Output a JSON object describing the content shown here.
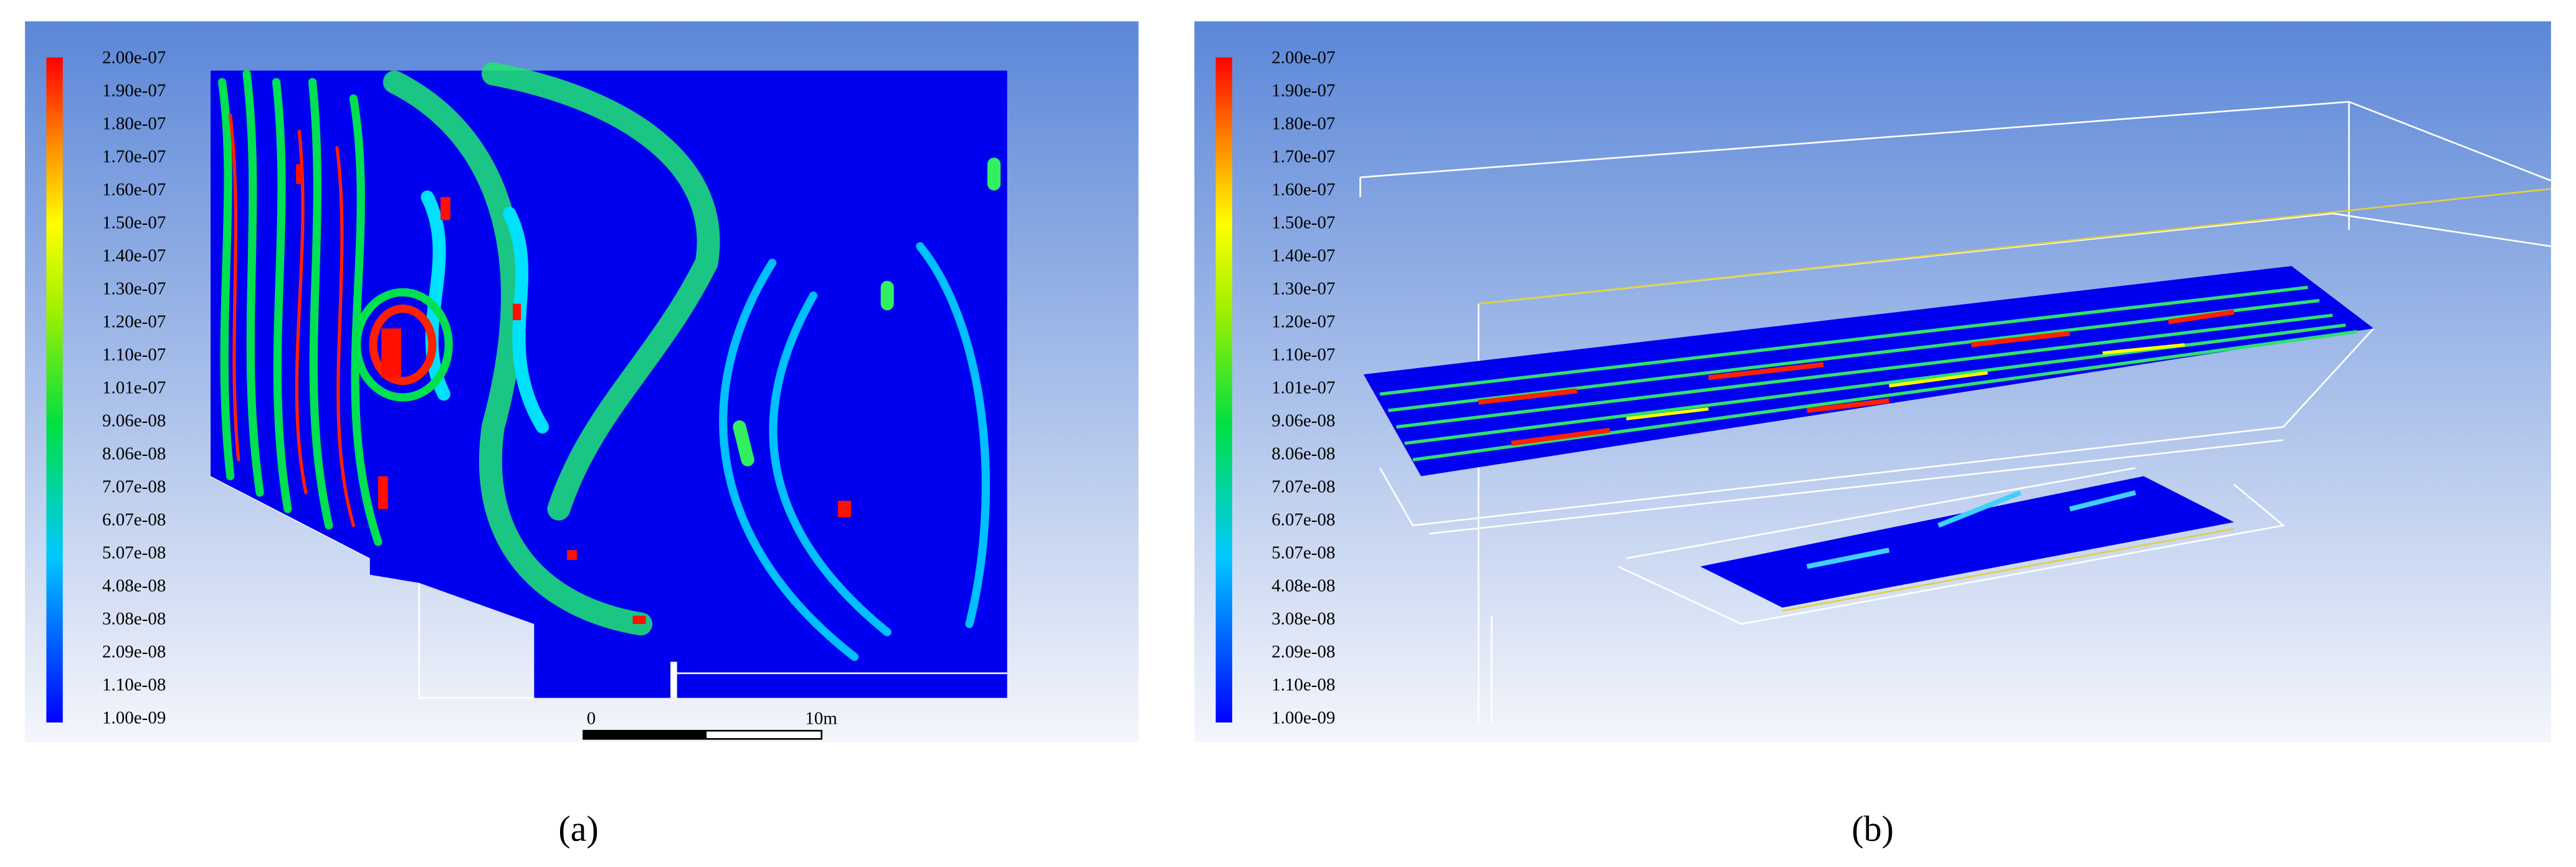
{
  "panels": [
    {
      "label": "(a)",
      "colorbar": [
        "2.00e-07",
        "1.90e-07",
        "1.80e-07",
        "1.70e-07",
        "1.60e-07",
        "1.50e-07",
        "1.40e-07",
        "1.30e-07",
        "1.20e-07",
        "1.10e-07",
        "1.01e-07",
        "9.06e-08",
        "8.06e-08",
        "7.07e-08",
        "6.07e-08",
        "5.07e-08",
        "4.08e-08",
        "3.08e-08",
        "2.09e-08",
        "1.10e-08",
        "1.00e-09"
      ],
      "scale_bar": {
        "start": "0",
        "end": "10m"
      }
    },
    {
      "label": "(b)",
      "colorbar": [
        "2.00e-07",
        "1.90e-07",
        "1.80e-07",
        "1.70e-07",
        "1.60e-07",
        "1.50e-07",
        "1.40e-07",
        "1.30e-07",
        "1.20e-07",
        "1.10e-07",
        "1.01e-07",
        "9.06e-08",
        "8.06e-08",
        "7.07e-08",
        "6.07e-08",
        "5.07e-08",
        "4.08e-08",
        "3.08e-08",
        "2.09e-08",
        "1.10e-08",
        "1.00e-09"
      ]
    }
  ]
}
